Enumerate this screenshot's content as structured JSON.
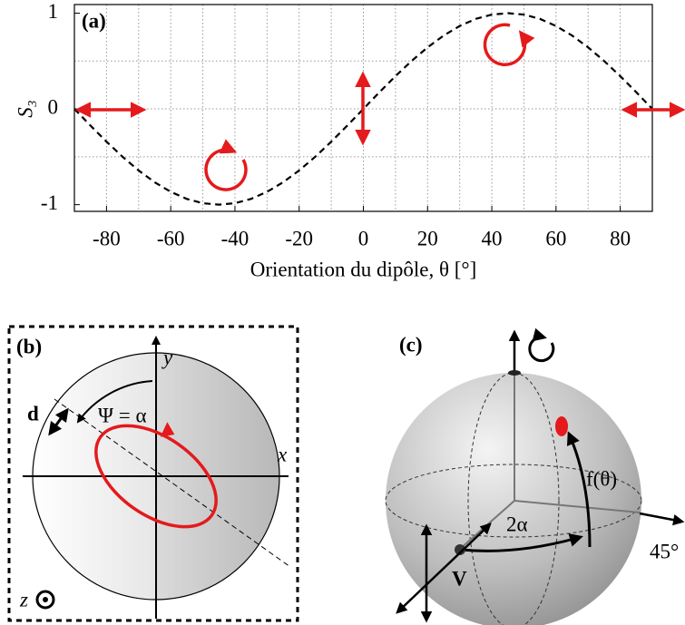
{
  "chart_data": {
    "type": "line",
    "panel_label": "(a)",
    "xlabel": "Orientation du dipôle, θ [°]",
    "ylabel": "S₃",
    "x": [
      -90,
      -85,
      -80,
      -75,
      -70,
      -65,
      -60,
      -55,
      -50,
      -45,
      -40,
      -35,
      -30,
      -25,
      -20,
      -15,
      -10,
      -5,
      0,
      5,
      10,
      15,
      20,
      25,
      30,
      35,
      40,
      45,
      50,
      55,
      60,
      65,
      70,
      75,
      80,
      85,
      90
    ],
    "values": [
      0,
      -0.174,
      -0.342,
      -0.5,
      -0.643,
      -0.766,
      -0.866,
      -0.94,
      -0.985,
      -1,
      -0.985,
      -0.94,
      -0.866,
      -0.766,
      -0.643,
      -0.5,
      -0.342,
      -0.174,
      0,
      0.174,
      0.342,
      0.5,
      0.643,
      0.766,
      0.866,
      0.94,
      0.985,
      1,
      0.985,
      0.94,
      0.866,
      0.766,
      0.643,
      0.5,
      0.342,
      0.174,
      0
    ],
    "color": "#000000",
    "dashed": true,
    "xlim": [
      -90,
      90
    ],
    "ylim": [
      -1.07,
      1.09
    ],
    "xticks": [
      -80,
      -60,
      -40,
      -20,
      0,
      20,
      40,
      60,
      80
    ],
    "yticks": [
      -1,
      0,
      1
    ],
    "grid": true,
    "x_grid": [
      -80,
      -70,
      -60,
      -50,
      -40,
      -30,
      -20,
      -10,
      0,
      10,
      20,
      30,
      40,
      50,
      60,
      70,
      80
    ],
    "y_grid": [
      -0.5,
      0,
      0.5
    ]
  },
  "panel_b": {
    "label": "(b)",
    "y_axis": "y",
    "x_axis": "x",
    "dipole": "d",
    "angle": "Ψ = α",
    "z_axis": "z"
  },
  "panel_c": {
    "label": "(c)",
    "function": "f(θ)",
    "angle": "2α",
    "diagonal": "45°",
    "vertical": "V"
  }
}
